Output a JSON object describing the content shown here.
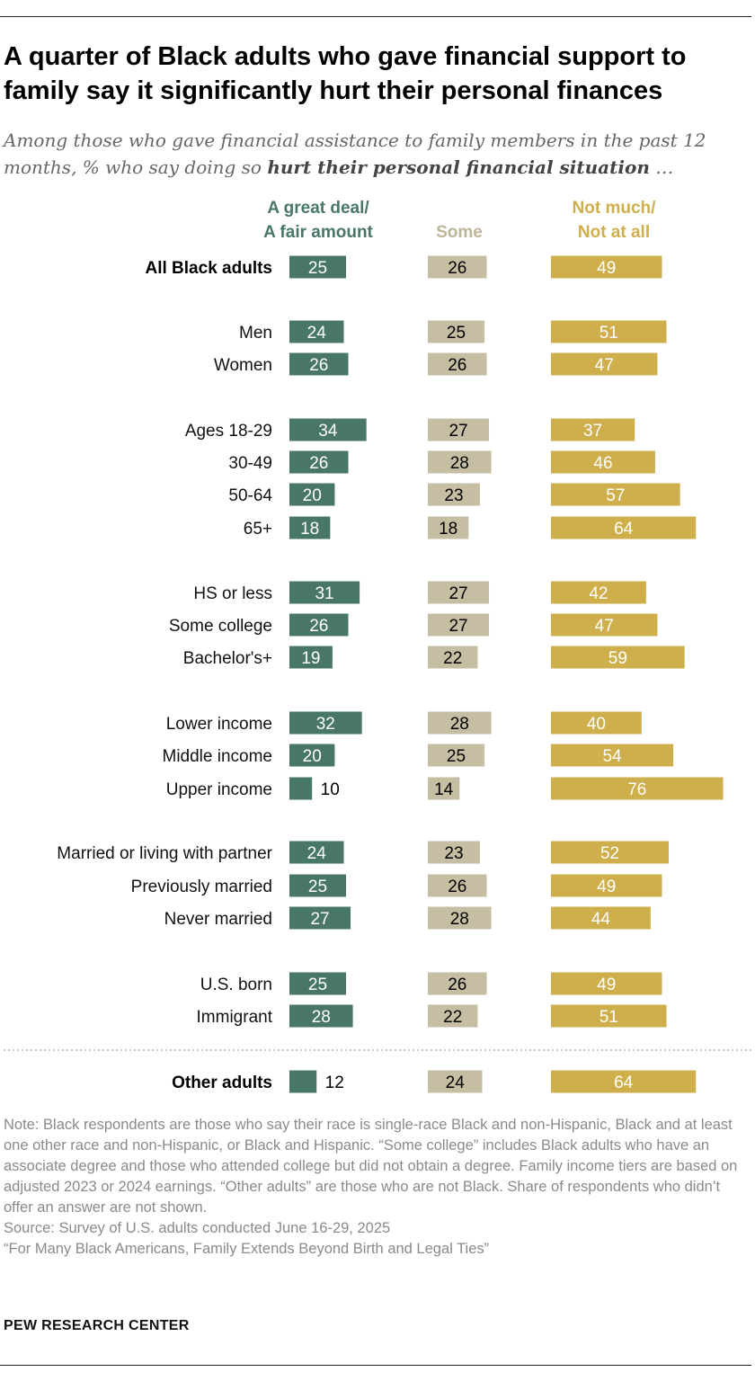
{
  "title": "A quarter of Black adults who gave financial support to family say it significantly hurt their personal finances",
  "subtitle_lead": "Among those who gave financial assistance to family members in the past 12 months, % who say doing so ",
  "subtitle_emphasis": "hurt their personal financial situation",
  "subtitle_tail": " …",
  "colors": {
    "great_deal": "#497767",
    "some": "#c5bea3",
    "not_much": "#cfae4c",
    "dark_text": "#000000",
    "light_text": "#ffffff"
  },
  "chart_data": {
    "type": "bar",
    "orientation": "horizontal-stacked-columns",
    "title": "A quarter of Black adults who gave financial support to family say it significantly hurt their personal finances",
    "unit": "%",
    "series": [
      {
        "key": "great_deal",
        "name_line1": "A great deal/",
        "name_line2": "A fair amount",
        "color": "#497767",
        "values": [
          25,
          24,
          26,
          34,
          26,
          20,
          18,
          31,
          26,
          19,
          32,
          20,
          10,
          24,
          25,
          27,
          25,
          28,
          12
        ]
      },
      {
        "key": "some",
        "name_line1": "",
        "name_line2": "Some",
        "color": "#c5bea3",
        "values": [
          26,
          25,
          26,
          27,
          28,
          23,
          18,
          27,
          27,
          22,
          28,
          25,
          14,
          23,
          26,
          28,
          26,
          22,
          24
        ]
      },
      {
        "key": "not_much",
        "name_line1": "Not much/",
        "name_line2": "Not at all",
        "color": "#cfae4c",
        "values": [
          49,
          51,
          47,
          37,
          46,
          57,
          64,
          42,
          47,
          59,
          40,
          54,
          76,
          52,
          49,
          44,
          49,
          51,
          64
        ]
      }
    ],
    "categories": [
      "All Black adults",
      "Men",
      "Women",
      "Ages 18-29",
      "30-49",
      "50-64",
      "65+",
      "HS or less",
      "Some college",
      "Bachelor's+",
      "Lower income",
      "Middle income",
      "Upper income",
      "Married or living with partner",
      "Previously married",
      "Never married",
      "U.S. born",
      "Immigrant",
      "Other adults"
    ],
    "bold_categories": [
      "All Black adults",
      "Other adults"
    ],
    "group_breaks_after": [
      "All Black adults",
      "Women",
      "65+",
      "Bachelor's+",
      "Upper income",
      "Never married"
    ],
    "separator_before": "Other adults"
  },
  "notes": {
    "note": "Note: Black respondents are those who say their race is single-race Black and non-Hispanic, Black and at least one other race and non-Hispanic, or Black and Hispanic. “Some college” includes Black adults who have an associate degree and those who attended college but did not obtain a degree. Family income tiers are based on adjusted 2023 or 2024 earnings. “Other adults” are those who are not Black. Share of respondents who didn’t offer an answer are not shown.",
    "source": "Source: Survey of U.S. adults conducted June 16-29, 2025",
    "report": "“For Many Black Americans, Family Extends Beyond Birth and Legal Ties”"
  },
  "brand": "PEW RESEARCH CENTER"
}
